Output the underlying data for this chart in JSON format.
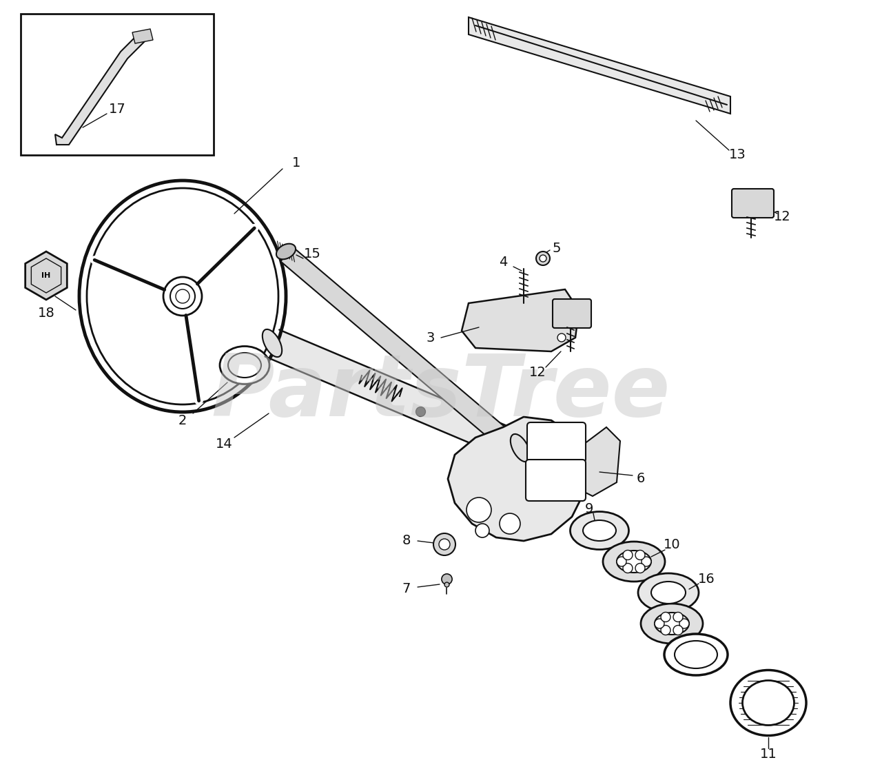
{
  "bg_color": "#ffffff",
  "line_color": "#111111",
  "watermark_text": "PartsTree",
  "watermark_color": "#c8c8c8",
  "figsize": [
    12.8,
    11.32
  ],
  "dpi": 100
}
